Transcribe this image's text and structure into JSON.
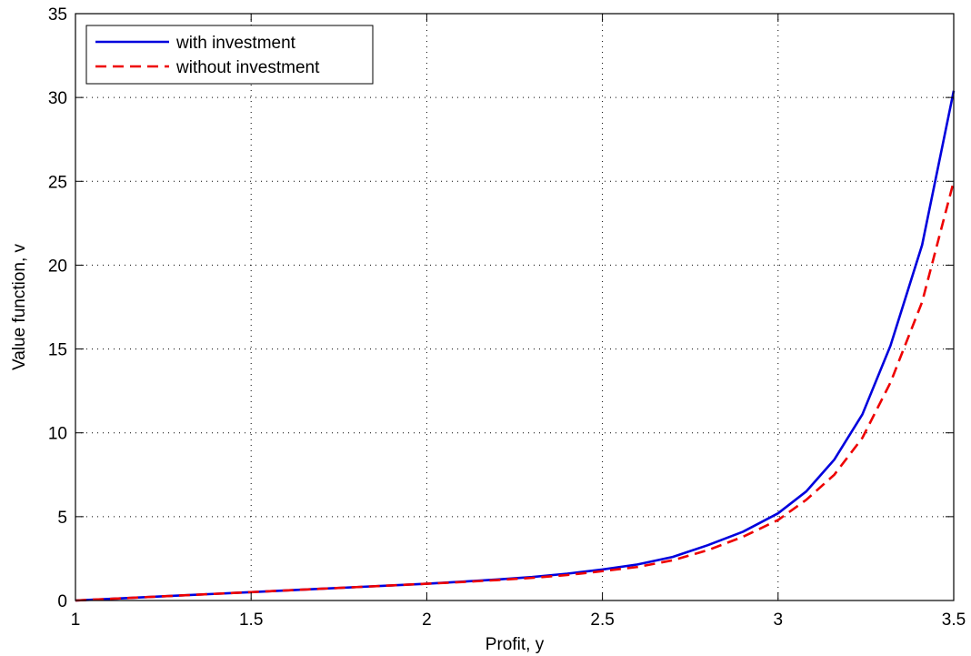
{
  "chart_data": {
    "type": "line",
    "title": "",
    "xlabel": "Profit, y",
    "ylabel": "Value function, v",
    "xlim": [
      1,
      3.5
    ],
    "ylim": [
      0,
      35
    ],
    "xticks": [
      1,
      1.5,
      2,
      2.5,
      3,
      3.5
    ],
    "yticks": [
      0,
      5,
      10,
      15,
      20,
      25,
      30,
      35
    ],
    "xtick_labels": [
      "1",
      "1.5",
      "2",
      "2.5",
      "3",
      "3.5"
    ],
    "ytick_labels": [
      "0",
      "5",
      "10",
      "15",
      "20",
      "25",
      "30",
      "35"
    ],
    "grid": true,
    "legend_position": "top-left",
    "x": [
      1,
      1.1,
      1.2,
      1.3,
      1.4,
      1.5,
      1.6,
      1.7,
      1.8,
      1.9,
      2.0,
      2.1,
      2.2,
      2.3,
      2.4,
      2.5,
      2.6,
      2.7,
      2.8,
      2.9,
      3.0,
      3.08,
      3.16,
      3.24,
      3.32,
      3.41,
      3.5
    ],
    "series": [
      {
        "name": "with investment",
        "color": "#0000dd",
        "style": "solid",
        "values": [
          0,
          0.1,
          0.2,
          0.3,
          0.4,
          0.5,
          0.6,
          0.7,
          0.8,
          0.9,
          1.0,
          1.12,
          1.25,
          1.4,
          1.6,
          1.85,
          2.15,
          2.6,
          3.3,
          4.1,
          5.2,
          6.5,
          8.4,
          11.1,
          15.2,
          21.2,
          30.4
        ]
      },
      {
        "name": "without investment",
        "color": "#ee0000",
        "style": "dashed",
        "values": [
          0,
          0.1,
          0.2,
          0.3,
          0.4,
          0.5,
          0.6,
          0.7,
          0.8,
          0.9,
          1.0,
          1.1,
          1.22,
          1.35,
          1.52,
          1.75,
          2.0,
          2.4,
          3.0,
          3.8,
          4.8,
          6.0,
          7.5,
          9.7,
          13.0,
          17.8,
          25.0
        ]
      }
    ]
  }
}
